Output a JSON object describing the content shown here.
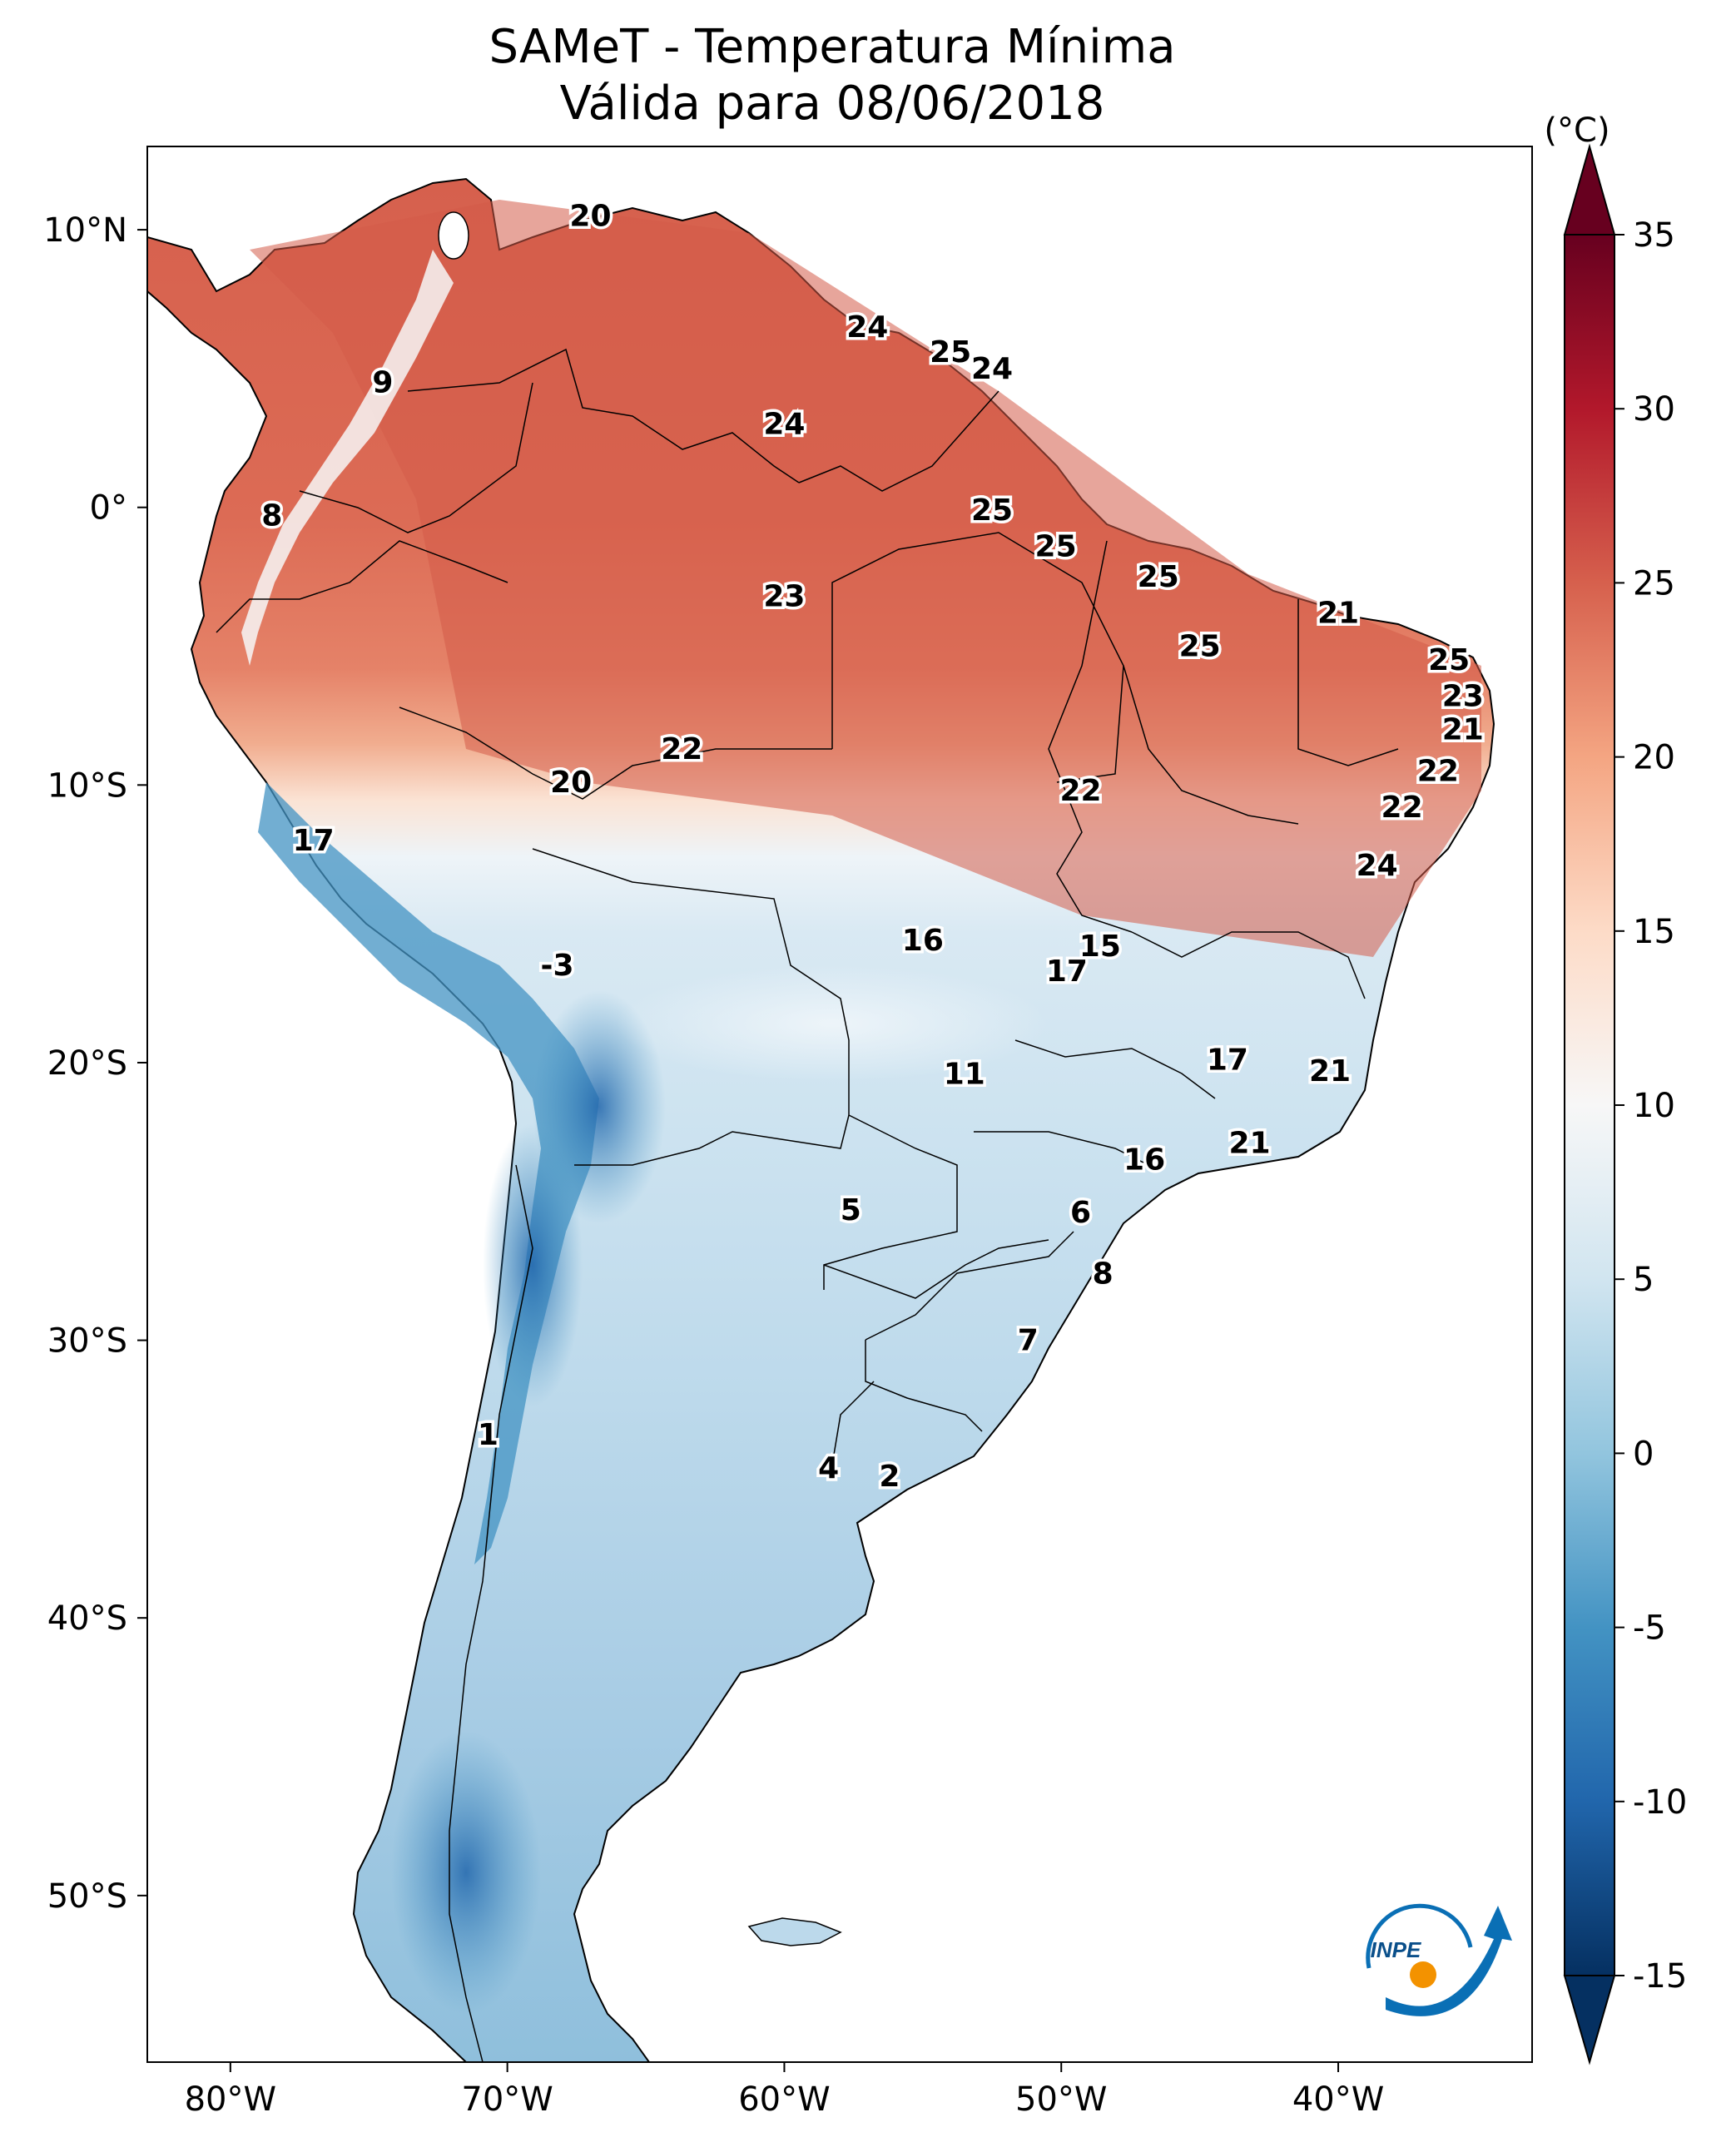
{
  "title": {
    "line1": "SAMeT - Temperatura Mínima",
    "line2": "Válida para 08/06/2018"
  },
  "map": {
    "lon_range": [
      -83,
      -33
    ],
    "lat_range": [
      -56,
      13
    ],
    "lon_ticks": [
      {
        "value": -80,
        "label": "80°W"
      },
      {
        "value": -70,
        "label": "70°W"
      },
      {
        "value": -60,
        "label": "60°W"
      },
      {
        "value": -50,
        "label": "50°W"
      },
      {
        "value": -40,
        "label": "40°W"
      }
    ],
    "lat_ticks": [
      {
        "value": 10,
        "label": "10°N"
      },
      {
        "value": 0,
        "label": "0°"
      },
      {
        "value": -10,
        "label": "10°S"
      },
      {
        "value": -20,
        "label": "20°S"
      },
      {
        "value": -30,
        "label": "30°S"
      },
      {
        "value": -40,
        "label": "40°S"
      },
      {
        "value": -50,
        "label": "50°S"
      }
    ]
  },
  "colorbar": {
    "unit": "(°C)",
    "min": -15,
    "max": 35,
    "ticks": [
      "35",
      "30",
      "25",
      "20",
      "15",
      "10",
      "5",
      "0",
      "-5",
      "-10",
      "-15"
    ],
    "colors": [
      "#053061",
      "#2166ac",
      "#4393c3",
      "#92c5de",
      "#d1e5f0",
      "#f7f7f7",
      "#fddbc7",
      "#f4a582",
      "#d6604d",
      "#b2182b",
      "#67001f"
    ]
  },
  "chart_data": {
    "type": "heatmap",
    "variable": "Temperatura Mínima (°C)",
    "station_labels": [
      {
        "lon": -67,
        "lat": 10.5,
        "value": 20
      },
      {
        "lon": -74.5,
        "lat": 4.5,
        "value": 9
      },
      {
        "lon": -78.5,
        "lat": -0.3,
        "value": 8
      },
      {
        "lon": -57,
        "lat": 6.5,
        "value": 24
      },
      {
        "lon": -54,
        "lat": 5.6,
        "value": 25
      },
      {
        "lon": -52.5,
        "lat": 5.0,
        "value": 24
      },
      {
        "lon": -60,
        "lat": 3.0,
        "value": 24
      },
      {
        "lon": -52.5,
        "lat": -0.1,
        "value": 25
      },
      {
        "lon": -60,
        "lat": -3.2,
        "value": 23
      },
      {
        "lon": -50.2,
        "lat": -1.4,
        "value": 25
      },
      {
        "lon": -46.5,
        "lat": -2.5,
        "value": 25
      },
      {
        "lon": -45,
        "lat": -5.0,
        "value": 25
      },
      {
        "lon": -40,
        "lat": -3.8,
        "value": 21
      },
      {
        "lon": -36,
        "lat": -5.5,
        "value": 25
      },
      {
        "lon": -35.5,
        "lat": -6.8,
        "value": 23
      },
      {
        "lon": -35.5,
        "lat": -8.0,
        "value": 21
      },
      {
        "lon": -36.4,
        "lat": -9.5,
        "value": 22
      },
      {
        "lon": -37.7,
        "lat": -10.8,
        "value": 22
      },
      {
        "lon": -38.6,
        "lat": -12.9,
        "value": 24
      },
      {
        "lon": -63.7,
        "lat": -8.7,
        "value": 22
      },
      {
        "lon": -67.7,
        "lat": -9.9,
        "value": 20
      },
      {
        "lon": -49.3,
        "lat": -10.2,
        "value": 22
      },
      {
        "lon": -77,
        "lat": -12.0,
        "value": 17
      },
      {
        "lon": -55,
        "lat": -15.6,
        "value": 16
      },
      {
        "lon": -48.6,
        "lat": -15.8,
        "value": 15
      },
      {
        "lon": -49.8,
        "lat": -16.7,
        "value": 17
      },
      {
        "lon": -68.2,
        "lat": -16.5,
        "value": -3
      },
      {
        "lon": -53.5,
        "lat": -20.4,
        "value": 11
      },
      {
        "lon": -44,
        "lat": -19.9,
        "value": 17
      },
      {
        "lon": -40.3,
        "lat": -20.3,
        "value": 21
      },
      {
        "lon": -43.2,
        "lat": -22.9,
        "value": 21
      },
      {
        "lon": -47,
        "lat": -23.5,
        "value": 16
      },
      {
        "lon": -57.6,
        "lat": -25.3,
        "value": 5
      },
      {
        "lon": -49.3,
        "lat": -25.4,
        "value": 6
      },
      {
        "lon": -48.5,
        "lat": -27.6,
        "value": 8
      },
      {
        "lon": -51.2,
        "lat": -30.0,
        "value": 7
      },
      {
        "lon": -70.7,
        "lat": -33.4,
        "value": 1
      },
      {
        "lon": -58.4,
        "lat": -34.6,
        "value": 4
      },
      {
        "lon": -56.2,
        "lat": -34.9,
        "value": 2
      }
    ]
  },
  "logo": {
    "text": "INPE"
  }
}
